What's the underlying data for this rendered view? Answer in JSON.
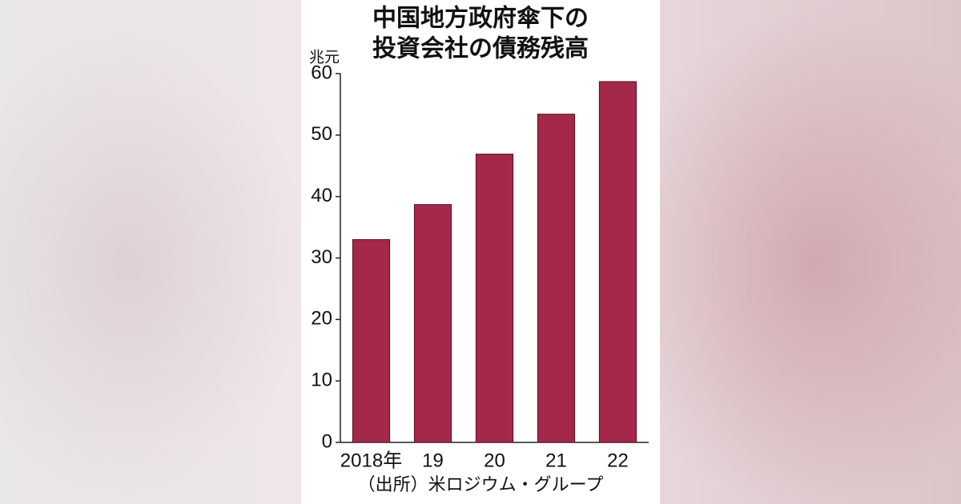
{
  "chart_data": {
    "type": "bar",
    "title_lines": [
      "中国地方政府傘下の",
      "投資会社の債務残高"
    ],
    "y_unit": "兆元",
    "categories": [
      "2018年",
      "19",
      "20",
      "21",
      "22"
    ],
    "values": [
      33,
      38.7,
      46.9,
      53.4,
      58.7
    ],
    "color": "#a3284a",
    "ylim": [
      0,
      60
    ],
    "yticks": [
      0,
      10,
      20,
      30,
      40,
      50,
      60
    ],
    "source": "（出所）米ロジウム・グループ"
  }
}
